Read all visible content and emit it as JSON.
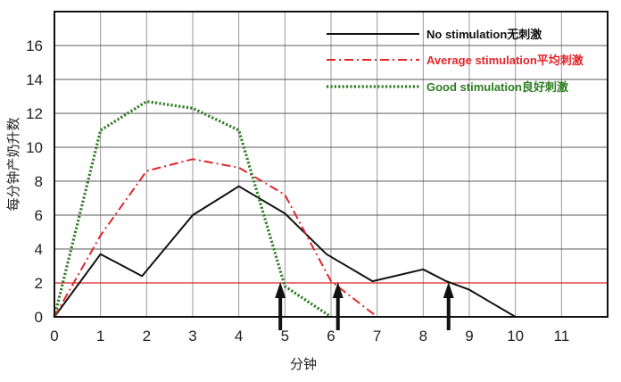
{
  "chart_data": {
    "type": "line",
    "xlabel": "分钟",
    "ylabel": "每分钟产奶升数",
    "xlim": [
      0,
      12
    ],
    "ylim": [
      0,
      18
    ],
    "x_ticks": [
      0,
      1,
      2,
      3,
      4,
      5,
      6,
      7,
      8,
      9,
      10,
      11
    ],
    "y_ticks": [
      0,
      2,
      4,
      6,
      8,
      10,
      12,
      14,
      16
    ],
    "grid": true,
    "legend_position": "top-right",
    "reference_line": {
      "y": 2,
      "color": "#d9232a"
    },
    "arrows_at_x": [
      4.9,
      6.15,
      8.55
    ],
    "series": [
      {
        "name": "No stimulation无刺激",
        "color": "#111111",
        "style": "solid",
        "x": [
          0,
          1,
          1.9,
          3,
          4,
          5,
          5.9,
          6.9,
          8,
          8.5,
          9,
          9.5,
          10
        ],
        "y": [
          0,
          3.7,
          2.4,
          6.0,
          7.7,
          6.1,
          3.7,
          2.1,
          2.8,
          2.1,
          1.6,
          0.8,
          0
        ]
      },
      {
        "name": "Average stimulation平均刺激",
        "color": "#e0262b",
        "style": "dashdot",
        "x": [
          0,
          1,
          2,
          3,
          4,
          5,
          6,
          7
        ],
        "y": [
          0,
          4.8,
          8.6,
          9.3,
          8.8,
          7.2,
          2.1,
          0
        ]
      },
      {
        "name": "Good stimulation良好刺激",
        "color": "#2e7d22",
        "style": "dotted",
        "x": [
          0,
          1,
          2,
          3,
          4,
          5,
          6
        ],
        "y": [
          0,
          11.0,
          12.7,
          12.3,
          11.0,
          1.8,
          0
        ]
      }
    ]
  }
}
